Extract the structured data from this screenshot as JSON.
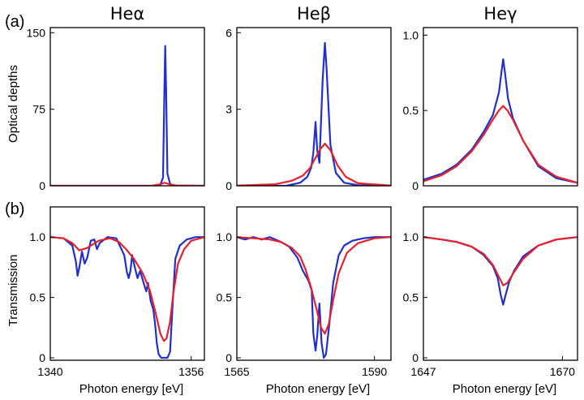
{
  "figure": {
    "row_labels": [
      "(a)",
      "(b)"
    ],
    "ylabels": [
      "Optical depths",
      "Transmission"
    ],
    "xlabel": "Photon energy [eV]",
    "colors": {
      "blue": "#1f2fd0",
      "red": "#e8202a",
      "frame": "#000000"
    }
  },
  "chart_data": [
    {
      "type": "line",
      "title": "Heα",
      "row": "a",
      "xlim": [
        1340,
        1357.5
      ],
      "ylim": [
        0,
        155
      ],
      "yticks": [
        "0",
        "75",
        "150"
      ],
      "ytick_values": [
        0,
        75,
        150
      ],
      "series": [
        {
          "name": "blue",
          "color": "#1f2fd0",
          "x": [
            1340,
            1352.0,
            1352.5,
            1352.8,
            1352.95,
            1353.05,
            1353.15,
            1353.3,
            1353.6,
            1354.0,
            1357.5
          ],
          "y": [
            0,
            0,
            1,
            8,
            90,
            137,
            95,
            12,
            2,
            0,
            0
          ]
        },
        {
          "name": "red",
          "color": "#e8202a",
          "x": [
            1340,
            1351.5,
            1352.5,
            1353.0,
            1353.5,
            1354.3,
            1357.5
          ],
          "y": [
            0,
            0,
            1.5,
            3,
            1.5,
            0.3,
            0
          ]
        }
      ]
    },
    {
      "type": "line",
      "title": "Heβ",
      "row": "a",
      "xlim": [
        1565,
        1593
      ],
      "ylim": [
        0,
        6.2
      ],
      "yticks": [
        "0",
        "3",
        "6"
      ],
      "ytick_values": [
        0,
        3,
        6
      ],
      "series": [
        {
          "name": "blue",
          "color": "#1f2fd0",
          "x": [
            1565,
            1574,
            1576.5,
            1577.8,
            1578.5,
            1578.9,
            1579.3,
            1579.6,
            1580.0,
            1580.6,
            1581.0,
            1581.3,
            1582.0,
            1583.0,
            1584.5,
            1587,
            1593
          ],
          "y": [
            0,
            0,
            0.12,
            0.35,
            0.7,
            1.3,
            2.5,
            1.4,
            0.9,
            4.2,
            5.6,
            4.6,
            1.6,
            0.5,
            0.12,
            0.02,
            0
          ]
        },
        {
          "name": "red",
          "color": "#e8202a",
          "x": [
            1565,
            1572,
            1575,
            1577.0,
            1578.3,
            1579.3,
            1580.2,
            1581.0,
            1582.0,
            1583.3,
            1584.8,
            1587,
            1593
          ],
          "y": [
            0.01,
            0.06,
            0.2,
            0.4,
            0.7,
            1.1,
            1.45,
            1.65,
            1.4,
            0.8,
            0.35,
            0.1,
            0.01
          ]
        }
      ]
    },
    {
      "type": "line",
      "title": "Heγ",
      "row": "a",
      "xlim": [
        1647,
        1672.5
      ],
      "ylim": [
        0,
        1.05
      ],
      "yticks": [
        "0",
        "0.5",
        "1.0"
      ],
      "ytick_values": [
        0,
        0.5,
        1.0
      ],
      "series": [
        {
          "name": "blue",
          "color": "#1f2fd0",
          "x": [
            1647,
            1650,
            1652.5,
            1655,
            1657,
            1658.5,
            1659.5,
            1659.9,
            1660.2,
            1660.5,
            1661.0,
            1661.8,
            1663.5,
            1666,
            1669,
            1672.5
          ],
          "y": [
            0.04,
            0.08,
            0.14,
            0.24,
            0.36,
            0.47,
            0.62,
            0.75,
            0.84,
            0.75,
            0.58,
            0.45,
            0.3,
            0.13,
            0.05,
            0.02
          ]
        },
        {
          "name": "red",
          "color": "#e8202a",
          "x": [
            1647,
            1650,
            1652.5,
            1655,
            1657,
            1658.5,
            1659.5,
            1660.2,
            1660.9,
            1661.8,
            1663.5,
            1666,
            1669,
            1672.5
          ],
          "y": [
            0.03,
            0.07,
            0.13,
            0.23,
            0.34,
            0.44,
            0.5,
            0.53,
            0.5,
            0.44,
            0.3,
            0.14,
            0.06,
            0.02
          ]
        }
      ]
    },
    {
      "type": "line",
      "title": "",
      "row": "b",
      "xlim": [
        1340,
        1357.5
      ],
      "ylim": [
        -0.02,
        1.25
      ],
      "yticks": [
        "0",
        "0.5",
        "1.0"
      ],
      "ytick_values": [
        0,
        0.5,
        1.0
      ],
      "xticks": [
        "1340",
        "1356"
      ],
      "xtick_values": [
        1340,
        1356
      ],
      "series": [
        {
          "name": "blue",
          "color": "#1f2fd0",
          "x": [
            1340,
            1341.5,
            1342.5,
            1342.9,
            1343.1,
            1343.3,
            1343.6,
            1343.9,
            1344.2,
            1344.6,
            1345.0,
            1345.3,
            1345.6,
            1346.5,
            1347.5,
            1348.4,
            1348.7,
            1348.9,
            1349.1,
            1349.3,
            1349.6,
            1349.9,
            1350.2,
            1350.6,
            1350.9,
            1351.1,
            1351.4,
            1351.7,
            1351.9,
            1352.1,
            1352.3,
            1352.6,
            1352.9,
            1353.3,
            1353.6,
            1353.9,
            1354.2,
            1354.7,
            1355.5,
            1356.5,
            1357.5
          ],
          "y": [
            1.0,
            0.99,
            0.93,
            0.8,
            0.68,
            0.75,
            0.88,
            0.78,
            0.83,
            0.97,
            0.98,
            0.9,
            0.95,
            1.0,
            0.99,
            0.85,
            0.71,
            0.66,
            0.72,
            0.85,
            0.75,
            0.66,
            0.72,
            0.62,
            0.55,
            0.62,
            0.47,
            0.4,
            0.28,
            0.12,
            0.03,
            0.0,
            0.0,
            0.0,
            0.05,
            0.45,
            0.82,
            0.93,
            0.98,
            1.0,
            1.0
          ]
        },
        {
          "name": "red",
          "color": "#e8202a",
          "x": [
            1340,
            1341.5,
            1342.5,
            1343.3,
            1344.2,
            1345.5,
            1346.8,
            1347.8,
            1348.6,
            1349.5,
            1350.5,
            1351.3,
            1352.0,
            1352.5,
            1352.9,
            1353.2,
            1353.6,
            1354.0,
            1354.5,
            1355.2,
            1356.0,
            1357.5
          ],
          "y": [
            1.0,
            0.99,
            0.95,
            0.89,
            0.91,
            0.97,
            0.99,
            0.96,
            0.9,
            0.82,
            0.7,
            0.56,
            0.36,
            0.2,
            0.14,
            0.16,
            0.3,
            0.55,
            0.78,
            0.9,
            0.97,
            1.0
          ]
        }
      ]
    },
    {
      "type": "line",
      "title": "",
      "row": "b",
      "xlim": [
        1565,
        1593
      ],
      "ylim": [
        -0.02,
        1.25
      ],
      "yticks": [
        "0",
        "0.5",
        "1.0"
      ],
      "ytick_values": [
        0,
        0.5,
        1.0
      ],
      "xticks": [
        "1565",
        "1590"
      ],
      "xtick_values": [
        1565,
        1590
      ],
      "series": [
        {
          "name": "blue",
          "color": "#1f2fd0",
          "x": [
            1565,
            1566.5,
            1568,
            1569.5,
            1571,
            1573,
            1574.5,
            1576,
            1577,
            1578.0,
            1578.6,
            1578.9,
            1579.3,
            1579.6,
            1580.0,
            1580.4,
            1580.8,
            1581.2,
            1581.8,
            1582.5,
            1583.5,
            1584.5,
            1586,
            1588,
            1590,
            1593
          ],
          "y": [
            1.0,
            0.98,
            1.0,
            0.98,
            1.0,
            0.96,
            0.92,
            0.83,
            0.72,
            0.64,
            0.56,
            0.2,
            0.06,
            0.18,
            0.45,
            0.12,
            0.0,
            0.03,
            0.28,
            0.62,
            0.85,
            0.93,
            0.97,
            0.99,
            1.0,
            1.0
          ]
        },
        {
          "name": "red",
          "color": "#e8202a",
          "x": [
            1565,
            1568,
            1571,
            1573,
            1575,
            1576.5,
            1577.5,
            1578.5,
            1579.5,
            1580.3,
            1581.0,
            1581.7,
            1582.5,
            1583.5,
            1585,
            1587,
            1590,
            1593
          ],
          "y": [
            1.0,
            0.99,
            0.98,
            0.96,
            0.91,
            0.84,
            0.73,
            0.58,
            0.4,
            0.25,
            0.2,
            0.28,
            0.48,
            0.7,
            0.87,
            0.95,
            0.99,
            1.0
          ]
        }
      ]
    },
    {
      "type": "line",
      "title": "",
      "row": "b",
      "xlim": [
        1647,
        1672.5
      ],
      "ylim": [
        -0.02,
        1.25
      ],
      "yticks": [
        "0",
        "0.5",
        "1.0"
      ],
      "ytick_values": [
        0,
        0.5,
        1.0
      ],
      "xticks": [
        "1647",
        "1670"
      ],
      "xtick_values": [
        1647,
        1670
      ],
      "series": [
        {
          "name": "blue",
          "color": "#1f2fd0",
          "x": [
            1647,
            1650,
            1652.5,
            1655,
            1657,
            1658.5,
            1659.3,
            1659.8,
            1660.2,
            1660.6,
            1661.2,
            1662,
            1663.5,
            1666,
            1669,
            1672.5
          ],
          "y": [
            1.0,
            0.98,
            0.96,
            0.92,
            0.85,
            0.76,
            0.66,
            0.52,
            0.44,
            0.52,
            0.63,
            0.72,
            0.84,
            0.93,
            0.98,
            1.0
          ]
        },
        {
          "name": "red",
          "color": "#e8202a",
          "x": [
            1647,
            1650,
            1652.5,
            1655,
            1657,
            1658.5,
            1659.5,
            1660.2,
            1660.9,
            1662,
            1663.5,
            1666,
            1669,
            1672.5
          ],
          "y": [
            1.0,
            0.98,
            0.96,
            0.92,
            0.86,
            0.77,
            0.67,
            0.6,
            0.62,
            0.71,
            0.82,
            0.93,
            0.98,
            1.0
          ]
        }
      ]
    }
  ]
}
